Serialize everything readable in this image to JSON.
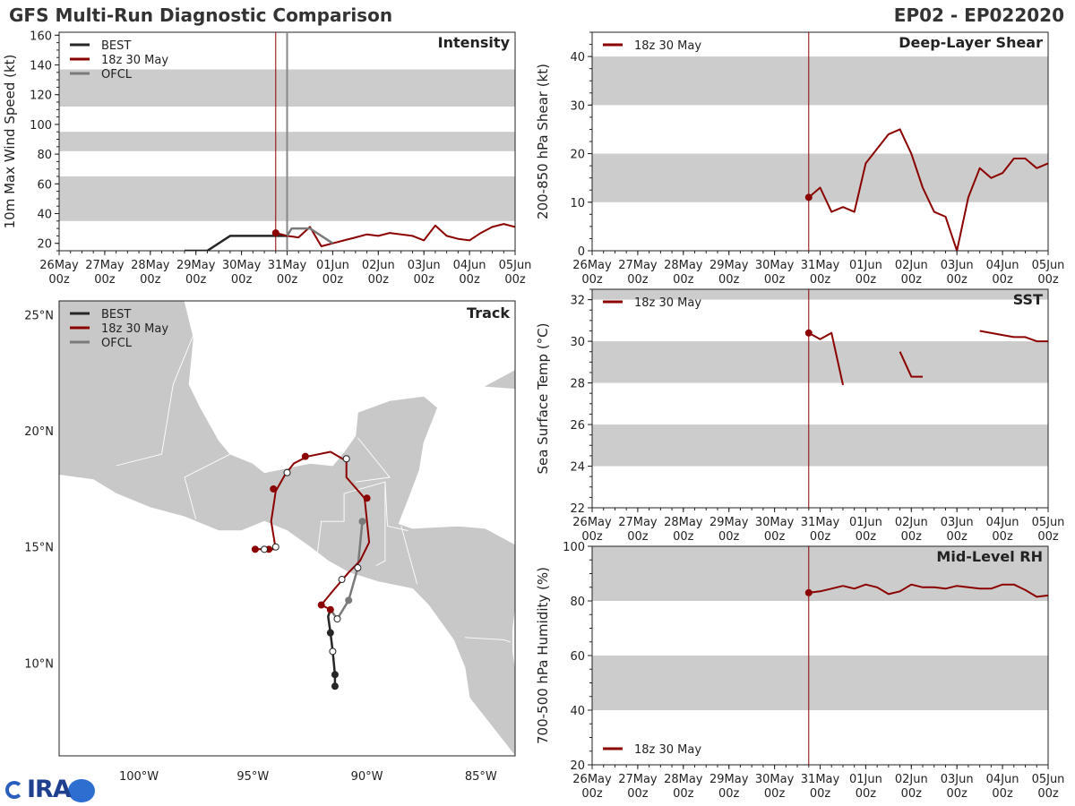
{
  "header": {
    "title": "GFS Multi-Run Diagnostic Comparison",
    "storm": "EP02 - EP022020"
  },
  "colors": {
    "best": "#262626",
    "run": "#8b0000",
    "ofcl": "#7a7a7a",
    "band": "#cccccc",
    "vline_run": "#8b0000",
    "vline_ofcl": "#888888",
    "land": "#c8c8c8"
  },
  "time_axis": {
    "range": [
      0,
      10
    ],
    "ticks": [
      {
        "t": 0,
        "top": "26May",
        "bottom": "00z"
      },
      {
        "t": 1,
        "top": "27May",
        "bottom": "00z"
      },
      {
        "t": 2,
        "top": "28May",
        "bottom": "00z"
      },
      {
        "t": 3,
        "top": "29May",
        "bottom": "00z"
      },
      {
        "t": 4,
        "top": "30May",
        "bottom": "00z"
      },
      {
        "t": 5,
        "top": "31May",
        "bottom": "00z"
      },
      {
        "t": 6,
        "top": "01Jun",
        "bottom": "00z"
      },
      {
        "t": 7,
        "top": "02Jun",
        "bottom": "00z"
      },
      {
        "t": 8,
        "top": "03Jun",
        "bottom": "00z"
      },
      {
        "t": 9,
        "top": "04Jun",
        "bottom": "00z"
      },
      {
        "t": 10,
        "top": "05Jun",
        "bottom": "00z"
      }
    ]
  },
  "chart_data": [
    {
      "id": "intensity",
      "type": "line",
      "title": "Intensity",
      "ylabel": "10m Max Wind Speed (kt)",
      "xlim": [
        0,
        10
      ],
      "ylim": [
        15,
        162
      ],
      "yticks": [
        20,
        40,
        60,
        80,
        100,
        120,
        140,
        160
      ],
      "bands": [
        [
          35,
          65
        ],
        [
          82,
          95
        ],
        [
          112,
          137
        ]
      ],
      "vlines": [
        {
          "t": 4.75,
          "color": "run"
        },
        {
          "t": 5.0,
          "color": "ofcl"
        }
      ],
      "legend": [
        "BEST",
        "18z 30 May",
        "OFCL"
      ],
      "series": [
        {
          "name": "BEST",
          "color": "best",
          "width": 2.5,
          "points": [
            [
              2.75,
              15
            ],
            [
              3.25,
              15
            ],
            [
              3.75,
              25
            ],
            [
              4,
              25
            ],
            [
              4.25,
              25
            ],
            [
              4.5,
              25
            ],
            [
              4.75,
              25
            ],
            [
              5.0,
              25
            ]
          ]
        },
        {
          "name": "18z 30 May",
          "color": "run",
          "width": 2,
          "marker_first": true,
          "points": [
            [
              4.75,
              27
            ],
            [
              5,
              25
            ],
            [
              5.25,
              24
            ],
            [
              5.5,
              31
            ],
            [
              5.75,
              18
            ],
            [
              6,
              20
            ],
            [
              6.25,
              22
            ],
            [
              6.5,
              24
            ],
            [
              6.75,
              26
            ],
            [
              7,
              25
            ],
            [
              7.25,
              27
            ],
            [
              7.5,
              26
            ],
            [
              7.75,
              25
            ],
            [
              8,
              22
            ],
            [
              8.25,
              32
            ],
            [
              8.5,
              25
            ],
            [
              8.75,
              23
            ],
            [
              9,
              22
            ],
            [
              9.25,
              27
            ],
            [
              9.5,
              31
            ],
            [
              9.75,
              33
            ],
            [
              10,
              31
            ]
          ]
        },
        {
          "name": "OFCL",
          "color": "ofcl",
          "width": 2.5,
          "points": [
            [
              5,
              25
            ],
            [
              5.1,
              30
            ],
            [
              5.5,
              30
            ],
            [
              6,
              20
            ]
          ]
        }
      ]
    },
    {
      "id": "shear",
      "type": "line",
      "title": "Deep-Layer Shear",
      "ylabel": "200-850 hPa Shear (kt)",
      "xlim": [
        0,
        10
      ],
      "ylim": [
        0,
        45
      ],
      "yticks": [
        0,
        10,
        20,
        30,
        40
      ],
      "bands": [
        [
          10,
          20
        ],
        [
          30,
          40
        ]
      ],
      "vlines": [
        {
          "t": 4.75,
          "color": "run"
        }
      ],
      "legend": [
        "18z 30 May"
      ],
      "series": [
        {
          "name": "18z 30 May",
          "color": "run",
          "width": 2,
          "marker_first": true,
          "points": [
            [
              4.75,
              11
            ],
            [
              5,
              13
            ],
            [
              5.25,
              8
            ],
            [
              5.5,
              9
            ],
            [
              5.75,
              8
            ],
            [
              6,
              18
            ],
            [
              6.25,
              21
            ],
            [
              6.5,
              24
            ],
            [
              6.75,
              25
            ],
            [
              7,
              20
            ],
            [
              7.25,
              13
            ],
            [
              7.5,
              8
            ],
            [
              7.75,
              7
            ],
            [
              8,
              0
            ],
            [
              8.25,
              11
            ],
            [
              8.5,
              17
            ],
            [
              8.75,
              15
            ],
            [
              9,
              16
            ],
            [
              9.25,
              19
            ],
            [
              9.5,
              19
            ],
            [
              9.75,
              17
            ],
            [
              10,
              18
            ]
          ]
        }
      ]
    },
    {
      "id": "sst",
      "type": "line",
      "title": "SST",
      "ylabel": "Sea Surface Temp (°C)",
      "xlim": [
        0,
        10
      ],
      "ylim": [
        22,
        32.5
      ],
      "yticks": [
        22,
        24,
        26,
        28,
        30,
        32
      ],
      "bands": [
        [
          24,
          26
        ],
        [
          28,
          30
        ],
        [
          32,
          32.5
        ]
      ],
      "vlines": [
        {
          "t": 4.75,
          "color": "run"
        }
      ],
      "legend": [
        "18z 30 May"
      ],
      "series": [
        {
          "name": "18z 30 May",
          "color": "run",
          "width": 2,
          "marker_first": true,
          "segments": [
            [
              [
                4.75,
                30.4
              ],
              [
                5,
                30.1
              ],
              [
                5.25,
                30.4
              ],
              [
                5.5,
                27.9
              ]
            ],
            [
              [
                6.75,
                29.5
              ],
              [
                7,
                28.3
              ],
              [
                7.25,
                28.3
              ]
            ],
            [
              [
                8.5,
                30.5
              ],
              [
                9,
                30.3
              ],
              [
                9.25,
                30.2
              ],
              [
                9.5,
                30.2
              ],
              [
                9.75,
                30.0
              ],
              [
                10,
                30.0
              ]
            ]
          ]
        }
      ]
    },
    {
      "id": "rh",
      "type": "line",
      "title": "Mid-Level RH",
      "ylabel": "700-500 hPa Humidity (%)",
      "xlim": [
        0,
        10
      ],
      "ylim": [
        20,
        100
      ],
      "yticks": [
        20,
        40,
        60,
        80,
        100
      ],
      "bands": [
        [
          40,
          60
        ],
        [
          80,
          100
        ]
      ],
      "vlines": [
        {
          "t": 4.75,
          "color": "run"
        }
      ],
      "legend": [
        "18z 30 May"
      ],
      "legend_pos": "bottom-left",
      "series": [
        {
          "name": "18z 30 May",
          "color": "run",
          "width": 2,
          "marker_first": true,
          "points": [
            [
              4.75,
              83
            ],
            [
              5,
              83.5
            ],
            [
              5.25,
              84.5
            ],
            [
              5.5,
              85.5
            ],
            [
              5.75,
              84.5
            ],
            [
              6,
              86
            ],
            [
              6.25,
              85
            ],
            [
              6.5,
              82.5
            ],
            [
              6.75,
              83.5
            ],
            [
              7,
              86
            ],
            [
              7.25,
              85
            ],
            [
              7.5,
              85
            ],
            [
              7.75,
              84.5
            ],
            [
              8,
              85.5
            ],
            [
              8.25,
              85
            ],
            [
              8.5,
              84.5
            ],
            [
              8.75,
              84.5
            ],
            [
              9,
              86
            ],
            [
              9.25,
              86
            ],
            [
              9.5,
              84
            ],
            [
              9.75,
              81.5
            ],
            [
              10,
              82
            ]
          ]
        }
      ]
    },
    {
      "id": "track",
      "type": "scatter",
      "title": "Track",
      "xlim": [
        -103.5,
        -83.5
      ],
      "ylim": [
        6,
        25.6
      ],
      "xticks": [
        {
          "v": -100,
          "label": "100°W"
        },
        {
          "v": -95,
          "label": "95°W"
        },
        {
          "v": -90,
          "label": "90°W"
        },
        {
          "v": -85,
          "label": "85°W"
        }
      ],
      "yticks": [
        {
          "v": 10,
          "label": "10°N"
        },
        {
          "v": 15,
          "label": "15°N"
        },
        {
          "v": 20,
          "label": "20°N"
        },
        {
          "v": 25,
          "label": "25°N"
        }
      ],
      "legend": [
        "BEST",
        "18z 30 May",
        "OFCL"
      ],
      "series": [
        {
          "name": "BEST",
          "color": "best",
          "width": 2.5,
          "points": [
            [
              -91.4,
              9.0
            ],
            [
              -91.4,
              9.5
            ],
            [
              -91.5,
              10.5
            ],
            [
              -91.6,
              11.3
            ],
            [
              -91.7,
              12.0
            ],
            [
              -91.6,
              12.3
            ]
          ],
          "markers": [
            [
              -91.4,
              9.0,
              "f"
            ],
            [
              -91.4,
              9.5,
              "f"
            ],
            [
              -91.5,
              10.5,
              "o"
            ],
            [
              -91.6,
              11.3,
              "f"
            ]
          ]
        },
        {
          "name": "OFCL",
          "color": "ofcl",
          "width": 2.5,
          "points": [
            [
              -91.6,
              12.3
            ],
            [
              -91.3,
              11.9
            ],
            [
              -90.8,
              12.7
            ],
            [
              -90.4,
              14.1
            ],
            [
              -90.2,
              16.1
            ]
          ],
          "markers": [
            [
              -91.3,
              11.9,
              "o"
            ],
            [
              -90.8,
              12.7,
              "f"
            ],
            [
              -90.4,
              14.1,
              "o"
            ],
            [
              -90.2,
              16.1,
              "f"
            ]
          ]
        },
        {
          "name": "18z 30 May",
          "color": "run",
          "width": 2,
          "points": [
            [
              -91.6,
              12.3
            ],
            [
              -92.0,
              12.5
            ],
            [
              -91.5,
              13.1
            ],
            [
              -90.8,
              13.9
            ],
            [
              -90.3,
              14.4
            ],
            [
              -89.9,
              15.2
            ],
            [
              -90.1,
              17.1
            ],
            [
              -90.9,
              18.0
            ],
            [
              -90.9,
              18.7
            ],
            [
              -91.6,
              19.1
            ],
            [
              -92.6,
              18.9
            ],
            [
              -93.2,
              18.6
            ],
            [
              -93.6,
              18.1
            ],
            [
              -94.0,
              17.4
            ],
            [
              -94.2,
              16.1
            ],
            [
              -94.0,
              14.9
            ],
            [
              -94.7,
              14.9
            ],
            [
              -95.0,
              14.9
            ]
          ],
          "markers": [
            [
              -91.6,
              12.3,
              "f"
            ],
            [
              -92.0,
              12.5,
              "f"
            ],
            [
              -91.1,
              13.6,
              "o"
            ],
            [
              -90.0,
              17.1,
              "f"
            ],
            [
              -90.9,
              18.8,
              "o"
            ],
            [
              -92.7,
              18.9,
              "f"
            ],
            [
              -93.5,
              18.2,
              "o"
            ],
            [
              -94.1,
              17.5,
              "f"
            ],
            [
              -94.0,
              15.0,
              "o"
            ],
            [
              -94.3,
              14.9,
              "f"
            ],
            [
              -94.5,
              14.9,
              "o"
            ],
            [
              -94.9,
              14.9,
              "f"
            ]
          ]
        }
      ]
    }
  ]
}
